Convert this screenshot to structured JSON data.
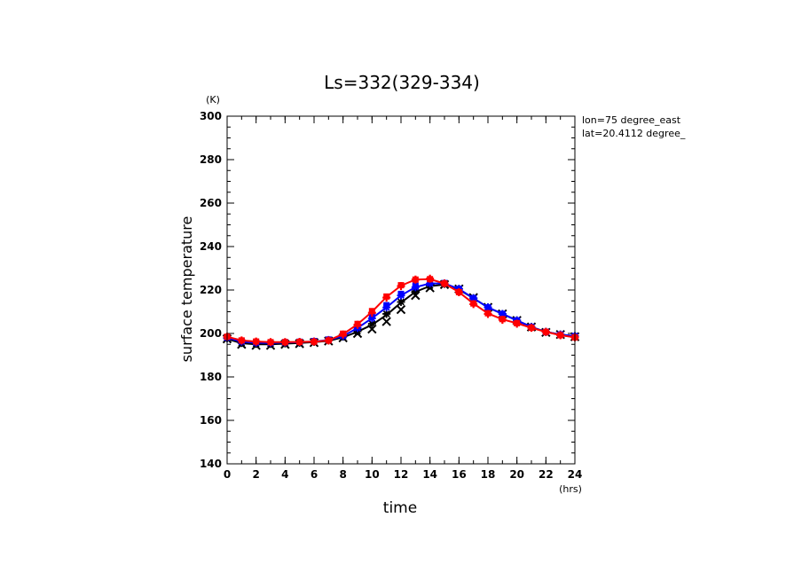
{
  "chart_data": {
    "type": "line",
    "title": "Ls=332(329-334)",
    "xlabel": "time",
    "ylabel": "surface temperature",
    "x_unit": "(hrs)",
    "y_unit": "(K)",
    "xlim": [
      0,
      24
    ],
    "ylim": [
      140,
      300
    ],
    "x_ticks": [
      0,
      2,
      4,
      6,
      8,
      10,
      12,
      14,
      16,
      18,
      20,
      22,
      24
    ],
    "y_ticks": [
      140,
      160,
      180,
      200,
      220,
      240,
      260,
      280,
      300
    ],
    "x_minor_step": 1,
    "y_minor_step": 5,
    "grid": false,
    "annotations": [
      "lon=75 degree_east",
      "lat=20.4112 degree_"
    ],
    "x": [
      0,
      1,
      2,
      3,
      4,
      5,
      6,
      7,
      8,
      9,
      10,
      11,
      12,
      13,
      14,
      15,
      16,
      17,
      18,
      19,
      20,
      21,
      22,
      23,
      24
    ],
    "series": [
      {
        "color": "#000000",
        "line": [
          197.5,
          195.5,
          195,
          195,
          195.3,
          195.6,
          196,
          196.6,
          198.2,
          200.8,
          204,
          208.5,
          214.2,
          219.2,
          221.8,
          222.5,
          220.2,
          216.2,
          212,
          209,
          206,
          203,
          200.7,
          199.5,
          198.8
        ],
        "markers": [
          {
            "symbol": "x",
            "values": [
              197.5,
              195,
              194.5,
              194.5,
              195,
              195.3,
              195.8,
              196.5,
              198,
              200,
              202,
              205.5,
              211,
              217.5,
              221,
              222.5,
              220.5,
              216.5,
              212,
              209,
              206,
              203,
              200.5,
              199.5,
              198.5
            ]
          },
          {
            "symbol": "star",
            "values": [
              197.8,
              195.6,
              195.2,
              195.2,
              195.4,
              195.7,
              196.1,
              196.8,
              198.5,
              201,
              204.5,
              209,
              214.5,
              219.5,
              222,
              222.8,
              220.5,
              216.2,
              212,
              209,
              206,
              203,
              200.7,
              199.5,
              198.8
            ]
          }
        ]
      },
      {
        "color": "#0000ff",
        "line": [
          198,
          196.2,
          195.7,
          195.6,
          195.8,
          196,
          196.3,
          197,
          198.8,
          202.5,
          207,
          212,
          217.5,
          221.3,
          223,
          223,
          220.5,
          216.2,
          212,
          209,
          206,
          203,
          200.7,
          199.5,
          198.8
        ],
        "markers": [
          {
            "symbol": "star",
            "values": [
              198,
              196.2,
              195.7,
              195.6,
              195.8,
              196,
              196.3,
              197,
              198.8,
              202.5,
              207,
              212,
              217.5,
              221.3,
              223,
              223,
              220.5,
              216.2,
              212,
              209,
              206,
              203,
              200.7,
              199.5,
              198.8
            ]
          },
          {
            "symbol": "square",
            "values": [
              198.2,
              196.4,
              195.9,
              195.8,
              196,
              196.2,
              196.5,
              197.2,
              199.2,
              203.3,
              208,
              213,
              218.2,
              222,
              223.4,
              223.2,
              220.5,
              216.2,
              212,
              209,
              206,
              203,
              200.7,
              199.5,
              198.8
            ]
          }
        ]
      },
      {
        "color": "#ff0000",
        "line": [
          198.5,
          196.8,
          196.3,
          196,
          196,
          196.1,
          196.2,
          196.8,
          199.7,
          204.2,
          210,
          216.8,
          222,
          224.8,
          225,
          223,
          219,
          213.8,
          209.2,
          206.5,
          204.7,
          202.6,
          200.7,
          199.2,
          198.2
        ],
        "markers": [
          {
            "symbol": "plus",
            "values": [
              198.5,
              196.8,
              196.3,
              196,
              196,
              196.1,
              196.2,
              196.8,
              199.5,
              204,
              209.5,
              216.5,
              221.8,
              224.8,
              225.2,
              223,
              219,
              213.5,
              209,
              206.3,
              204.5,
              202.6,
              200.7,
              199.2,
              198.2
            ]
          },
          {
            "symbol": "square",
            "values": [
              198.5,
              196.8,
              196.3,
              196,
              196,
              196.1,
              196.2,
              196.8,
              199.9,
              204.4,
              210.3,
              217,
              222.2,
              224.8,
              225,
              223,
              219,
              213.8,
              209.3,
              206.6,
              204.7,
              202.6,
              200.7,
              199.2,
              198.2
            ]
          }
        ]
      }
    ]
  }
}
